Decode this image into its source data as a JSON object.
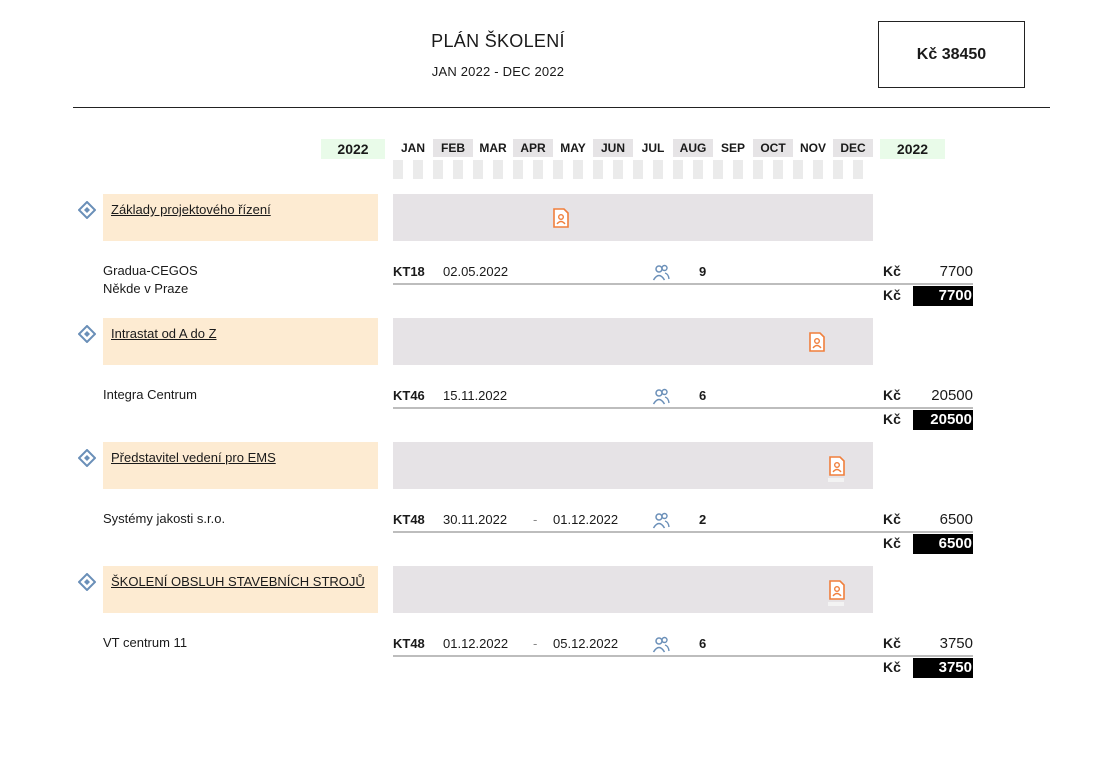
{
  "header": {
    "title": "PLÁN ŠKOLENÍ",
    "subtitle": "JAN 2022 - DEC 2022",
    "total": "Kč 38450"
  },
  "timeline": {
    "year_left": "2022",
    "year_right": "2022",
    "months": [
      "JAN",
      "FEB",
      "MAR",
      "APR",
      "MAY",
      "JUN",
      "JUL",
      "AUG",
      "SEP",
      "OCT",
      "NOV",
      "DEC"
    ]
  },
  "courses": [
    {
      "name": "Základy projektového řízení",
      "provider_line1": "Gradua-CEGOS",
      "provider_line2": "Někde v Praze",
      "code": "KT18",
      "date_from": "02.05.2022",
      "dash": "",
      "date_to": "",
      "participants": "9",
      "currency": "Kč",
      "price": "7700",
      "total_currency": "Kč",
      "total": "7700"
    },
    {
      "name": "Intrastat od A do Z",
      "provider_line1": "Integra Centrum",
      "provider_line2": "",
      "code": "KT46",
      "date_from": "15.11.2022",
      "dash": "",
      "date_to": "",
      "participants": "6",
      "currency": "Kč",
      "price": "20500",
      "total_currency": "Kč",
      "total": "20500"
    },
    {
      "name": "Představitel vedení pro EMS",
      "provider_line1": "Systémy jakosti s.r.o.",
      "provider_line2": "",
      "code": "KT48",
      "date_from": "30.11.2022",
      "dash": "-",
      "date_to": "01.12.2022",
      "participants": "2",
      "currency": "Kč",
      "price": "6500",
      "total_currency": "Kč",
      "total": "6500"
    },
    {
      "name": "ŠKOLENÍ OBSLUH STAVEBNÍCH STROJŮ",
      "provider_line1": "VT centrum 11",
      "provider_line2": "",
      "code": "KT48",
      "date_from": "01.12.2022",
      "dash": "-",
      "date_to": "05.12.2022",
      "participants": "6",
      "currency": "Kč",
      "price": "3750",
      "total_currency": "Kč",
      "total": "3750"
    }
  ],
  "colors": {
    "course_label_bg": "#fdebd2",
    "gantt_bg": "#e6e3e6",
    "marker": "#f07f3c",
    "course_icon": "#6a8fb8",
    "year_bg": "#e9fbe9"
  },
  "icons": {
    "course": "diamond-icon",
    "marker": "training-marker-icon",
    "participants": "people-icon"
  }
}
